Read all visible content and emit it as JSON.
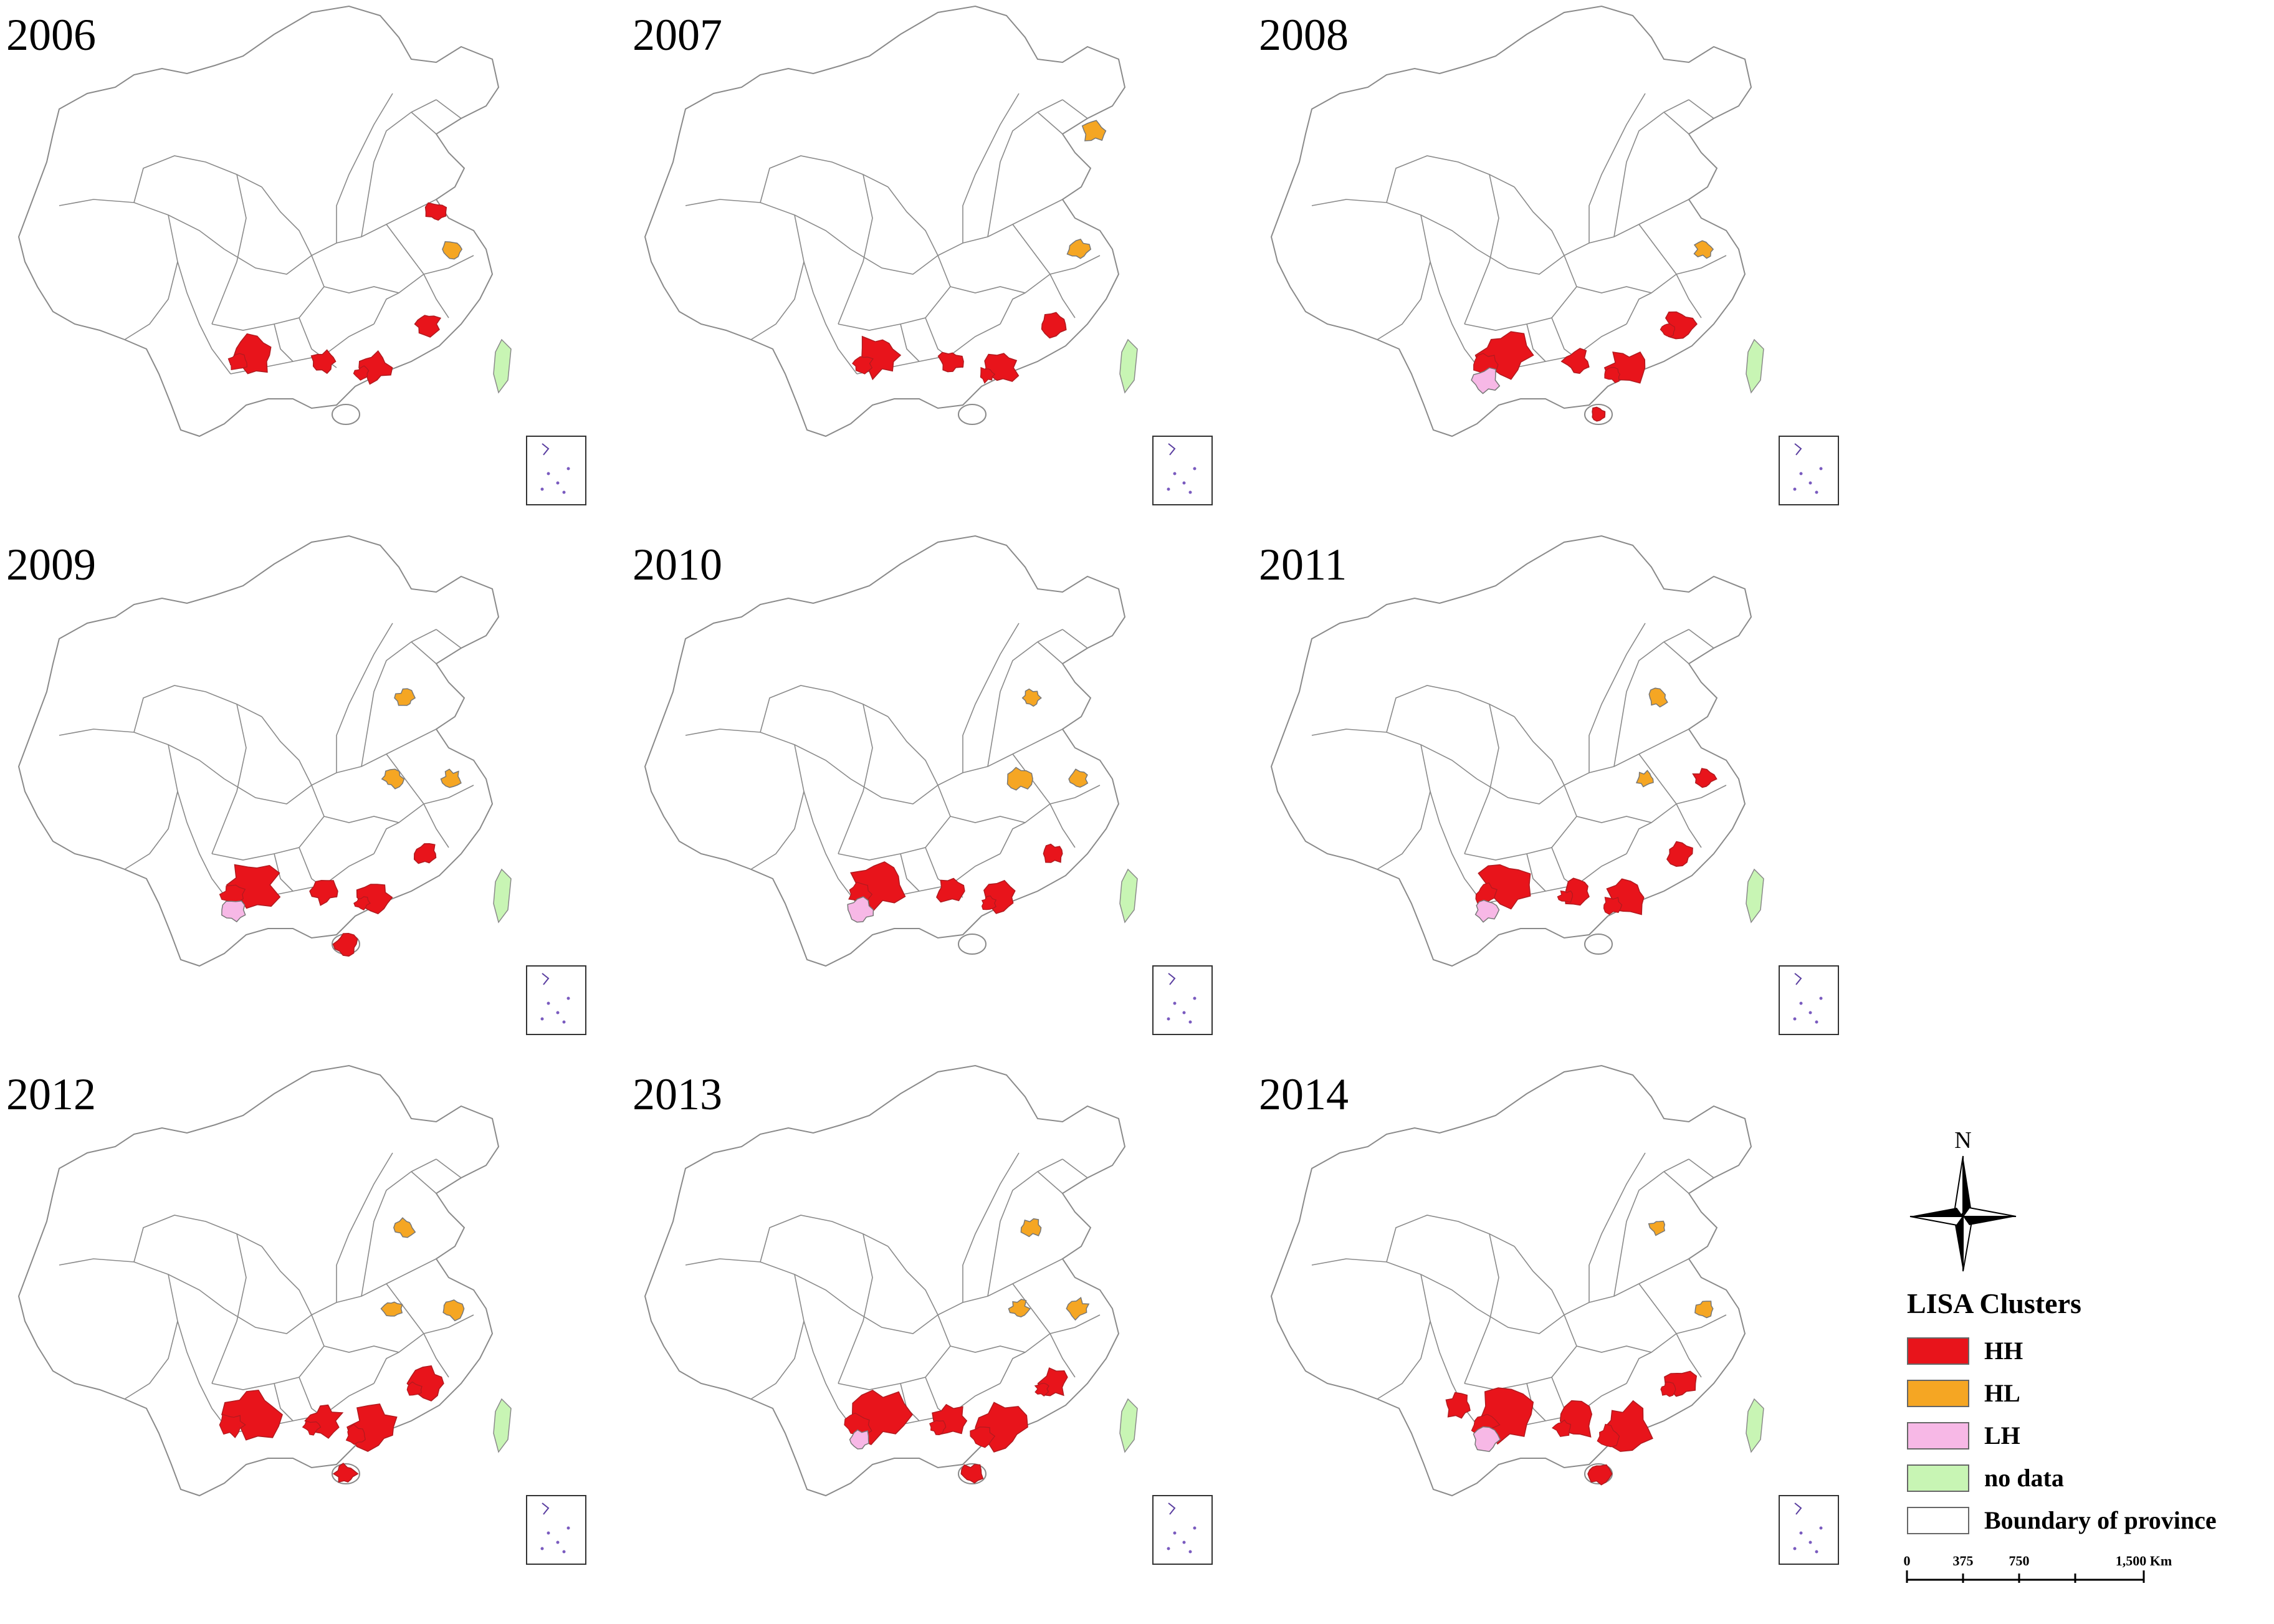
{
  "colors": {
    "HH": "#e8141b",
    "HH_dark": "#b01a1f",
    "HL": "#f5a623",
    "LH": "#f7b8e6",
    "no_data": "#c8f5b4",
    "boundary": "#ffffff",
    "outline": "#8a8a8a"
  },
  "panels": [
    {
      "year": "2006",
      "clusters": [
        {
          "cls": "HH",
          "region": "yunnan",
          "size": 0.75
        },
        {
          "cls": "HH",
          "region": "guangxi",
          "size": 0.35
        },
        {
          "cls": "HH",
          "region": "guangdong",
          "size": 0.55
        },
        {
          "cls": "HH",
          "region": "fujian",
          "size": 0.4
        },
        {
          "cls": "HH",
          "region": "shandong",
          "size": 0.3
        },
        {
          "cls": "HL",
          "region": "jiangsu",
          "size": 0.25
        }
      ]
    },
    {
      "year": "2007",
      "clusters": [
        {
          "cls": "HH",
          "region": "yunnan",
          "size": 0.85
        },
        {
          "cls": "HH",
          "region": "guangxi",
          "size": 0.35
        },
        {
          "cls": "HH",
          "region": "guangdong",
          "size": 0.65
        },
        {
          "cls": "HH",
          "region": "fujian",
          "size": 0.45
        },
        {
          "cls": "HL",
          "region": "liaoning",
          "size": 0.35
        },
        {
          "cls": "HL",
          "region": "jiangsu",
          "size": 0.3
        }
      ]
    },
    {
      "year": "2008",
      "clusters": [
        {
          "cls": "HH",
          "region": "yunnan",
          "size": 1.0
        },
        {
          "cls": "LH",
          "region": "yunnan_south",
          "size": 0.4
        },
        {
          "cls": "HH",
          "region": "guangxi",
          "size": 0.4
        },
        {
          "cls": "HH",
          "region": "guangdong",
          "size": 0.65
        },
        {
          "cls": "HH",
          "region": "fujian",
          "size": 0.5
        },
        {
          "cls": "HH",
          "region": "hainan",
          "size": 0.2
        },
        {
          "cls": "HL",
          "region": "jiangsu",
          "size": 0.25
        }
      ]
    },
    {
      "year": "2009",
      "clusters": [
        {
          "cls": "HH",
          "region": "yunnan",
          "size": 1.0
        },
        {
          "cls": "LH",
          "region": "yunnan_south",
          "size": 0.35
        },
        {
          "cls": "HH",
          "region": "guangxi",
          "size": 0.45
        },
        {
          "cls": "HH",
          "region": "guangdong",
          "size": 0.55
        },
        {
          "cls": "HH",
          "region": "fujian",
          "size": 0.35
        },
        {
          "cls": "HH",
          "region": "hainan",
          "size": 0.35
        },
        {
          "cls": "HL",
          "region": "hebei",
          "size": 0.25
        },
        {
          "cls": "HL",
          "region": "henan",
          "size": 0.25
        },
        {
          "cls": "HL",
          "region": "jiangsu",
          "size": 0.25
        }
      ]
    },
    {
      "year": "2010",
      "clusters": [
        {
          "cls": "HH",
          "region": "yunnan",
          "size": 1.0
        },
        {
          "cls": "LH",
          "region": "yunnan_south",
          "size": 0.45
        },
        {
          "cls": "HH",
          "region": "guangxi",
          "size": 0.4
        },
        {
          "cls": "HH",
          "region": "guangdong",
          "size": 0.55
        },
        {
          "cls": "HH",
          "region": "fujian",
          "size": 0.3
        },
        {
          "cls": "HL",
          "region": "hebei",
          "size": 0.25
        },
        {
          "cls": "HL",
          "region": "henan",
          "size": 0.35
        },
        {
          "cls": "HL",
          "region": "jiangsu",
          "size": 0.25
        }
      ]
    },
    {
      "year": "2011",
      "clusters": [
        {
          "cls": "HH",
          "region": "yunnan",
          "size": 1.0
        },
        {
          "cls": "LH",
          "region": "yunnan_south",
          "size": 0.35
        },
        {
          "cls": "HH",
          "region": "guangxi",
          "size": 0.5
        },
        {
          "cls": "HH",
          "region": "guangdong",
          "size": 0.75
        },
        {
          "cls": "HH",
          "region": "fujian",
          "size": 0.4
        },
        {
          "cls": "HH",
          "region": "jiangsu",
          "size": 0.3
        },
        {
          "cls": "HL",
          "region": "hebei",
          "size": 0.25
        },
        {
          "cls": "HL",
          "region": "henan",
          "size": 0.2
        }
      ]
    },
    {
      "year": "2012",
      "clusters": [
        {
          "cls": "HH",
          "region": "yunnan",
          "size": 1.1
        },
        {
          "cls": "HH",
          "region": "guangxi",
          "size": 0.6
        },
        {
          "cls": "HH",
          "region": "guangdong",
          "size": 0.9
        },
        {
          "cls": "HH",
          "region": "fujian",
          "size": 0.6
        },
        {
          "cls": "HH",
          "region": "hainan",
          "size": 0.3
        },
        {
          "cls": "HL",
          "region": "hebei",
          "size": 0.25
        },
        {
          "cls": "HL",
          "region": "henan",
          "size": 0.25
        },
        {
          "cls": "HL",
          "region": "jiangsu",
          "size": 0.35
        }
      ]
    },
    {
      "year": "2013",
      "clusters": [
        {
          "cls": "HH",
          "region": "yunnan",
          "size": 1.1
        },
        {
          "cls": "LH",
          "region": "yunnan_south",
          "size": 0.3
        },
        {
          "cls": "HH",
          "region": "guangxi",
          "size": 0.6
        },
        {
          "cls": "HH",
          "region": "guangdong",
          "size": 0.95
        },
        {
          "cls": "HH",
          "region": "fujian",
          "size": 0.5
        },
        {
          "cls": "HH",
          "region": "hainan",
          "size": 0.3
        },
        {
          "cls": "HL",
          "region": "hebei",
          "size": 0.25
        },
        {
          "cls": "HL",
          "region": "henan",
          "size": 0.25
        },
        {
          "cls": "HL",
          "region": "jiangsu",
          "size": 0.3
        }
      ]
    },
    {
      "year": "2014",
      "clusters": [
        {
          "cls": "HH",
          "region": "tibet_se",
          "size": 0.45
        },
        {
          "cls": "HH",
          "region": "yunnan",
          "size": 1.1
        },
        {
          "cls": "LH",
          "region": "yunnan_south",
          "size": 0.4
        },
        {
          "cls": "HH",
          "region": "guangxi",
          "size": 0.7
        },
        {
          "cls": "HH",
          "region": "guangdong",
          "size": 0.95
        },
        {
          "cls": "HH",
          "region": "fujian",
          "size": 0.55
        },
        {
          "cls": "HH",
          "region": "hainan",
          "size": 0.35
        },
        {
          "cls": "HL",
          "region": "hebei",
          "size": 0.2
        },
        {
          "cls": "HL",
          "region": "jiangsu",
          "size": 0.25
        }
      ]
    }
  ],
  "compass_label": "N",
  "legend": {
    "title": "LISA Clusters",
    "items": [
      {
        "label": "HH",
        "color": "#e8141b"
      },
      {
        "label": "HL",
        "color": "#f5a623"
      },
      {
        "label": "LH",
        "color": "#f7b8e6"
      },
      {
        "label": "no data",
        "color": "#c8f5b4"
      },
      {
        "label": "Boundary of province",
        "color": "#ffffff"
      }
    ]
  },
  "scale": {
    "ticks": [
      "0",
      "375",
      "750",
      "1,500 Km"
    ]
  }
}
